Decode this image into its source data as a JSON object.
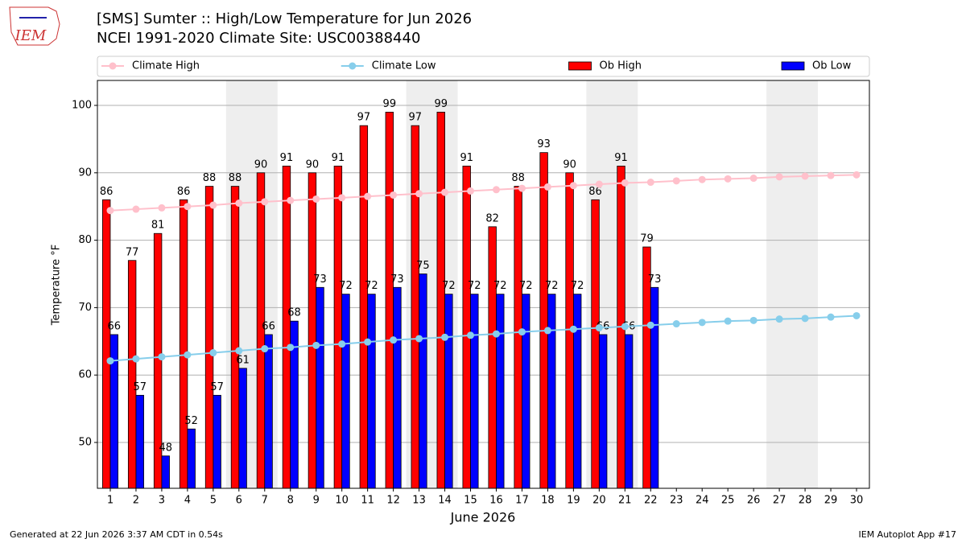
{
  "chart_data": {
    "type": "bar",
    "title_lines": [
      "[SMS] Sumter :: High/Low Temperature for Jun 2026",
      "NCEI 1991-2020 Climate Site: USC00388440"
    ],
    "logo_text": "IEM",
    "xlabel": "June 2026",
    "ylabel": "Temperature °F",
    "footer_left": "Generated at 22 Jun 2026 3:37 AM CDT in 0.54s",
    "footer_right": "IEM Autoplot App #17",
    "x": [
      1,
      2,
      3,
      4,
      5,
      6,
      7,
      8,
      9,
      10,
      11,
      12,
      13,
      14,
      15,
      16,
      17,
      18,
      19,
      20,
      21,
      22,
      23,
      24,
      25,
      26,
      27,
      28,
      29,
      30
    ],
    "xlim": [
      0.5,
      30.5
    ],
    "xticks": [
      1,
      2,
      3,
      4,
      5,
      6,
      7,
      8,
      9,
      10,
      11,
      12,
      13,
      14,
      15,
      16,
      17,
      18,
      19,
      20,
      21,
      22,
      23,
      24,
      25,
      26,
      27,
      28,
      29,
      30
    ],
    "ylim": [
      43.2,
      103.7
    ],
    "yticks": [
      50,
      60,
      70,
      80,
      90,
      100
    ],
    "grid": true,
    "weekends": [
      [
        6,
        7
      ],
      [
        13,
        14
      ],
      [
        20,
        21
      ],
      [
        27,
        28
      ]
    ],
    "weekend_color": "#eeeeee",
    "series": [
      {
        "name": "Climate High",
        "type": "line",
        "color": "#ffc0cb",
        "values": [
          84.4,
          84.6,
          84.8,
          85.0,
          85.2,
          85.5,
          85.7,
          85.9,
          86.1,
          86.3,
          86.5,
          86.7,
          86.9,
          87.1,
          87.3,
          87.5,
          87.7,
          87.9,
          88.1,
          88.3,
          88.5,
          88.6,
          88.8,
          89.0,
          89.1,
          89.2,
          89.4,
          89.5,
          89.6,
          89.7
        ]
      },
      {
        "name": "Climate Low",
        "type": "line",
        "color": "#87ceeb",
        "values": [
          62.1,
          62.4,
          62.7,
          63.0,
          63.3,
          63.6,
          63.9,
          64.1,
          64.4,
          64.6,
          64.9,
          65.2,
          65.4,
          65.6,
          65.9,
          66.1,
          66.4,
          66.6,
          66.8,
          67.0,
          67.2,
          67.4,
          67.6,
          67.8,
          68.0,
          68.1,
          68.3,
          68.4,
          68.6,
          68.8
        ]
      },
      {
        "name": "Ob High",
        "type": "bar",
        "color": "#ff0000",
        "values": [
          86,
          77,
          81,
          86,
          88,
          88,
          90,
          91,
          90,
          91,
          97,
          99,
          97,
          99,
          91,
          82,
          88,
          93,
          90,
          86,
          91,
          79,
          null,
          null,
          null,
          null,
          null,
          null,
          null,
          null
        ]
      },
      {
        "name": "Ob Low",
        "type": "bar",
        "color": "#0000ff",
        "values": [
          66,
          57,
          48,
          52,
          57,
          61,
          66,
          68,
          73,
          72,
          72,
          73,
          75,
          72,
          72,
          72,
          72,
          72,
          72,
          66,
          66,
          73,
          null,
          null,
          null,
          null,
          null,
          null,
          null,
          null
        ]
      }
    ]
  }
}
